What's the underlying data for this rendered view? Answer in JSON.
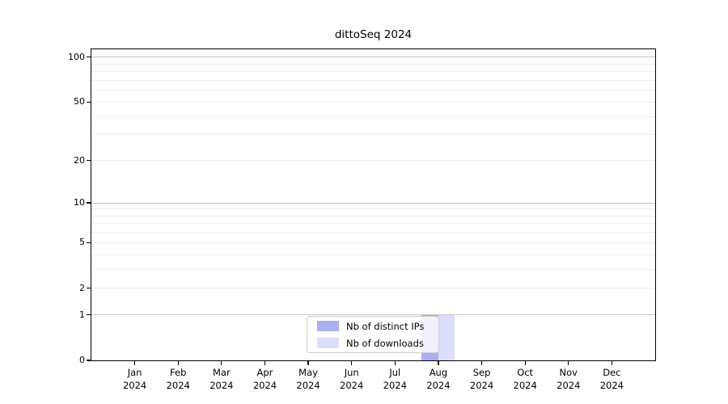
{
  "chart_data": {
    "type": "bar",
    "title": "dittoSeq 2024",
    "categories": [
      {
        "month": "Jan",
        "year": "2024"
      },
      {
        "month": "Feb",
        "year": "2024"
      },
      {
        "month": "Mar",
        "year": "2024"
      },
      {
        "month": "Apr",
        "year": "2024"
      },
      {
        "month": "May",
        "year": "2024"
      },
      {
        "month": "Jun",
        "year": "2024"
      },
      {
        "month": "Jul",
        "year": "2024"
      },
      {
        "month": "Aug",
        "year": "2024"
      },
      {
        "month": "Sep",
        "year": "2024"
      },
      {
        "month": "Oct",
        "year": "2024"
      },
      {
        "month": "Nov",
        "year": "2024"
      },
      {
        "month": "Dec",
        "year": "2024"
      }
    ],
    "series": [
      {
        "name": "Nb of distinct IPs",
        "color": "#a9aff0",
        "values": [
          0,
          0,
          0,
          0,
          0,
          0,
          0,
          1,
          0,
          0,
          0,
          0
        ]
      },
      {
        "name": "Nb of downloads",
        "color": "#dbdefa",
        "values": [
          0,
          0,
          0,
          0,
          0,
          0,
          0,
          1,
          0,
          0,
          0,
          0
        ]
      }
    ],
    "xlabel": "",
    "ylabel": "",
    "yscale": "log1p",
    "yticks": [
      0,
      1,
      2,
      5,
      10,
      20,
      50,
      100
    ],
    "ylim": [
      0,
      113
    ],
    "grid": "horizontal",
    "legend_position": "bottom-center-inside"
  },
  "colors": {
    "major_grid": "#c2c2c2",
    "minor_grid": "#ededed",
    "axis": "#000000",
    "legend_border": "#cccccc",
    "background": "#ffffff"
  }
}
